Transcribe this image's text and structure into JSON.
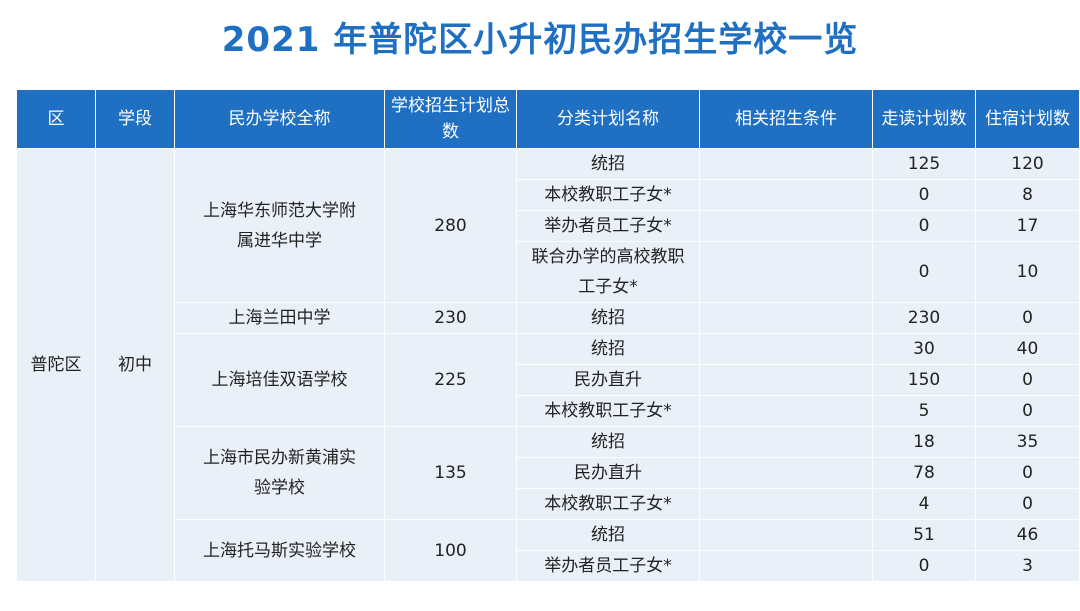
{
  "title": "2021 年普陀区小升初民办招生学校一览",
  "headers": [
    "区",
    "学段",
    "民办学校全称",
    "学校招生计划总数",
    "分类计划名称",
    "相关招生条件",
    "走读计划数",
    "住宿计划数"
  ],
  "district": "普陀区",
  "stage": "初中",
  "schools": [
    {
      "name": "上海华东师范大学附属进华中学",
      "total": "280",
      "rows": [
        {
          "category": "统招",
          "condition": "",
          "day": "125",
          "boarding": "120"
        },
        {
          "category": "本校教职工子女*",
          "condition": "",
          "day": "0",
          "boarding": "8"
        },
        {
          "category": "举办者员工子女*",
          "condition": "",
          "day": "0",
          "boarding": "17"
        },
        {
          "category": "联合办学的高校教职工子女*",
          "condition": "",
          "day": "0",
          "boarding": "10"
        }
      ]
    },
    {
      "name": "上海兰田中学",
      "total": "230",
      "rows": [
        {
          "category": "统招",
          "condition": "",
          "day": "230",
          "boarding": "0"
        }
      ]
    },
    {
      "name": "上海培佳双语学校",
      "total": "225",
      "rows": [
        {
          "category": "统招",
          "condition": "",
          "day": "30",
          "boarding": "40"
        },
        {
          "category": "民办直升",
          "condition": "",
          "day": "150",
          "boarding": "0"
        },
        {
          "category": "本校教职工子女*",
          "condition": "",
          "day": "5",
          "boarding": "0"
        }
      ]
    },
    {
      "name": "上海市民办新黄浦实验学校",
      "total": "135",
      "rows": [
        {
          "category": "统招",
          "condition": "",
          "day": "18",
          "boarding": "35"
        },
        {
          "category": "民办直升",
          "condition": "",
          "day": "78",
          "boarding": "0"
        },
        {
          "category": "本校教职工子女*",
          "condition": "",
          "day": "4",
          "boarding": "0"
        }
      ]
    },
    {
      "name": "上海托马斯实验学校",
      "total": "100",
      "rows": [
        {
          "category": "统招",
          "condition": "",
          "day": "51",
          "boarding": "46"
        },
        {
          "category": "举办者员工子女*",
          "condition": "",
          "day": "0",
          "boarding": "3"
        }
      ]
    }
  ]
}
